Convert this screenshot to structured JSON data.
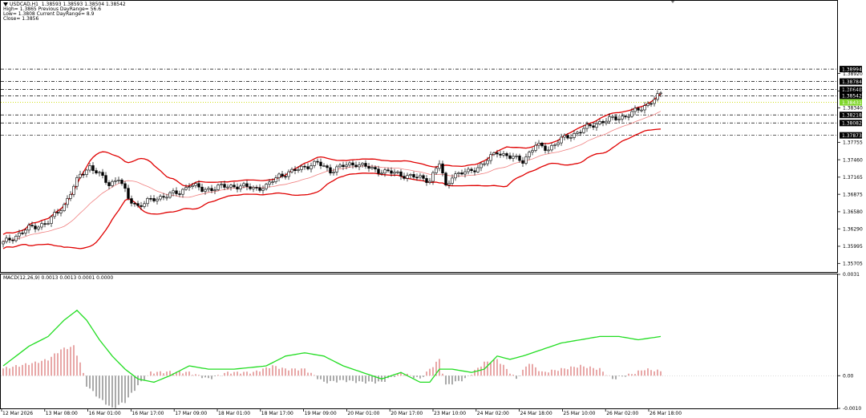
{
  "header": {
    "symbol_line": "USDCAD,H1  1.38593 1.38593 1.38504 1.38542",
    "high_line": "High= 1.3865 Previous DayRange= 56.6",
    "low_line": "Low= 1.3808 Current DayRange= 8.9",
    "close_line": "Close= 1.3856"
  },
  "macd_label": "MACD(12,26,9) 0.0013 0.0013 0.0001 0.0000",
  "colors": {
    "bands": "#e00000",
    "middle": "#f08080",
    "signal": "#22dd22",
    "hist_pos": "#d05050",
    "hist_neg": "#555555",
    "bid_line": "#ccdd00",
    "current_label_bg": "#7fd62a"
  },
  "chart_data": [
    {
      "type": "candlestick",
      "title": "USDCAD,H1",
      "ylim": [
        1.3556,
        1.4015
      ],
      "price_ticks": [
        "1.38920",
        "1.38625",
        "1.38340",
        "1.37755",
        "1.37460",
        "1.37165",
        "1.36875",
        "1.36580",
        "1.36290",
        "1.35995",
        "1.35705"
      ],
      "boxed_levels": [
        {
          "label": "1.38994",
          "value": 1.38994
        },
        {
          "label": "1.38784",
          "value": 1.38784
        },
        {
          "label": "1.38648",
          "value": 1.38648
        },
        {
          "label": "1.38542",
          "value": 1.38542
        },
        {
          "label": "1.38431",
          "value": 1.38431,
          "current": true
        },
        {
          "label": "1.38218",
          "value": 1.38218
        },
        {
          "label": "1.38082",
          "value": 1.38082
        },
        {
          "label": "1.37873",
          "value": 1.37873
        }
      ],
      "x_ticks": [
        "12 Mar 2026",
        "13 Mar 08:00",
        "16 Mar 01:00",
        "16 Mar 17:00",
        "17 Mar 09:00",
        "18 Mar 01:00",
        "18 Mar 17:00",
        "19 Mar 09:00",
        "20 Mar 01:00",
        "20 Mar 17:00",
        "23 Mar 10:00",
        "24 Mar 02:00",
        "24 Mar 18:00",
        "25 Mar 10:00",
        "26 Mar 02:00",
        "26 Mar 18:00"
      ],
      "close_anchors": [
        [
          0,
          1.3605
        ],
        [
          8,
          1.363
        ],
        [
          14,
          1.364
        ],
        [
          19,
          1.367
        ],
        [
          24,
          1.372
        ],
        [
          27,
          1.3735
        ],
        [
          30,
          1.372
        ],
        [
          33,
          1.3705
        ],
        [
          36,
          1.3715
        ],
        [
          39,
          1.368
        ],
        [
          42,
          1.3668
        ],
        [
          45,
          1.3675
        ],
        [
          50,
          1.3685
        ],
        [
          55,
          1.369
        ],
        [
          58,
          1.3705
        ],
        [
          62,
          1.3695
        ],
        [
          68,
          1.37
        ],
        [
          72,
          1.3702
        ],
        [
          78,
          1.3698
        ],
        [
          82,
          1.37
        ],
        [
          86,
          1.372
        ],
        [
          90,
          1.3725
        ],
        [
          94,
          1.3735
        ],
        [
          98,
          1.374
        ],
        [
          102,
          1.3728
        ],
        [
          106,
          1.3735
        ],
        [
          110,
          1.374
        ],
        [
          115,
          1.373
        ],
        [
          120,
          1.3725
        ],
        [
          125,
          1.372
        ],
        [
          130,
          1.3715
        ],
        [
          133,
          1.3712
        ],
        [
          136,
          1.374
        ],
        [
          138,
          1.37
        ],
        [
          140,
          1.372
        ],
        [
          145,
          1.3725
        ],
        [
          150,
          1.374
        ],
        [
          154,
          1.376
        ],
        [
          158,
          1.375
        ],
        [
          162,
          1.3745
        ],
        [
          166,
          1.377
        ],
        [
          170,
          1.3765
        ],
        [
          174,
          1.378
        ],
        [
          178,
          1.379
        ],
        [
          182,
          1.38
        ],
        [
          186,
          1.381
        ],
        [
          190,
          1.3815
        ],
        [
          194,
          1.382
        ],
        [
          198,
          1.383
        ],
        [
          202,
          1.3845
        ],
        [
          205,
          1.3856
        ]
      ],
      "series": [
        {
          "name": "Upper band"
        },
        {
          "name": "Middle band"
        },
        {
          "name": "Lower band"
        }
      ]
    },
    {
      "type": "bar",
      "title": "MACD(12,26,9)",
      "ylim": [
        -0.001,
        0.0031
      ],
      "y_ticks": [
        "0.0031",
        "0.00",
        "-0.0010"
      ],
      "histogram_anchors": [
        [
          0,
          0.00022
        ],
        [
          10,
          0.0004
        ],
        [
          14,
          0.0005
        ],
        [
          18,
          0.0008
        ],
        [
          22,
          0.0009
        ],
        [
          24,
          0.0004
        ],
        [
          26,
          -0.0003
        ],
        [
          30,
          -0.0007
        ],
        [
          34,
          -0.001
        ],
        [
          38,
          -0.0008
        ],
        [
          42,
          -0.0003
        ],
        [
          46,
          0.0001
        ],
        [
          52,
          0.00012
        ],
        [
          58,
          0.0001
        ],
        [
          64,
          -0.0001
        ],
        [
          70,
          0.0001
        ],
        [
          78,
          0.0001
        ],
        [
          84,
          0.0003
        ],
        [
          88,
          0.0002
        ],
        [
          94,
          0.0002
        ],
        [
          100,
          -0.0002
        ],
        [
          106,
          -0.00015
        ],
        [
          112,
          -0.0002
        ],
        [
          118,
          -0.0002
        ],
        [
          124,
          0.0001
        ],
        [
          130,
          -0.0001
        ],
        [
          134,
          0.0003
        ],
        [
          136,
          0.0005
        ],
        [
          138,
          -0.0003
        ],
        [
          144,
          -0.0001
        ],
        [
          150,
          0.0004
        ],
        [
          154,
          0.0005
        ],
        [
          160,
          -0.0001
        ],
        [
          164,
          0.0004
        ],
        [
          168,
          0.0001
        ],
        [
          174,
          0.0002
        ],
        [
          180,
          0.0003
        ],
        [
          186,
          0.0002
        ],
        [
          190,
          -0.0001
        ],
        [
          196,
          5e-05
        ],
        [
          200,
          0.0002
        ],
        [
          205,
          0.00014
        ]
      ],
      "signal_anchors": [
        [
          0,
          0.0003
        ],
        [
          8,
          0.0009
        ],
        [
          14,
          0.0012
        ],
        [
          19,
          0.0017
        ],
        [
          23,
          0.002
        ],
        [
          26,
          0.0017
        ],
        [
          30,
          0.0011
        ],
        [
          34,
          0.0006
        ],
        [
          38,
          0.0002
        ],
        [
          42,
          -0.0001
        ],
        [
          47,
          -0.0002
        ],
        [
          52,
          0.0
        ],
        [
          58,
          0.0003
        ],
        [
          64,
          0.0002
        ],
        [
          72,
          0.0002
        ],
        [
          82,
          0.0003
        ],
        [
          88,
          0.0006
        ],
        [
          94,
          0.0007
        ],
        [
          100,
          0.0006
        ],
        [
          106,
          0.0003
        ],
        [
          112,
          0.0001
        ],
        [
          118,
          -0.0001
        ],
        [
          124,
          0.0001
        ],
        [
          130,
          -0.0002
        ],
        [
          133,
          -0.0002
        ],
        [
          136,
          0.0002
        ],
        [
          140,
          0.0002
        ],
        [
          146,
          0.0001
        ],
        [
          150,
          0.0002
        ],
        [
          154,
          0.0006
        ],
        [
          158,
          0.0005
        ],
        [
          162,
          0.0006
        ],
        [
          168,
          0.0008
        ],
        [
          174,
          0.001
        ],
        [
          180,
          0.0011
        ],
        [
          186,
          0.0012
        ],
        [
          192,
          0.0012
        ],
        [
          198,
          0.0011
        ],
        [
          205,
          0.0012
        ]
      ]
    }
  ]
}
